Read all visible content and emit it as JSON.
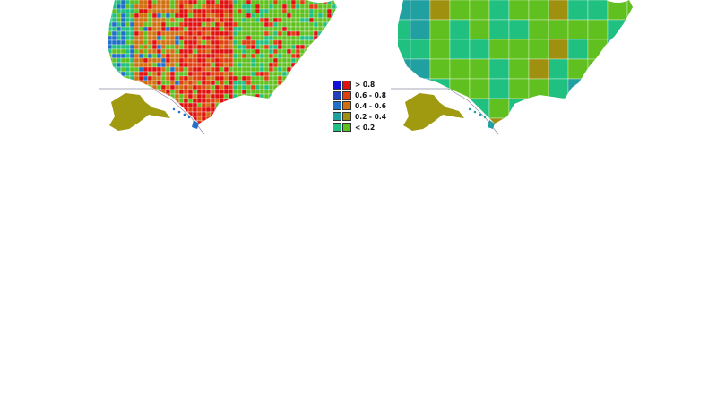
{
  "legend": {
    "items": [
      {
        "label": "> 0.8",
        "blue": "#1010d8",
        "red": "#e01010"
      },
      {
        "label": "0.6 - 0.8",
        "blue": "#2040c0",
        "red": "#e04010"
      },
      {
        "label": "0.4 - 0.6",
        "blue": "#2070c8",
        "red": "#d07010"
      },
      {
        "label": "0.2 - 0.4",
        "blue": "#20a0a0",
        "red": "#a09010"
      },
      {
        "label": "< 0.2",
        "blue": "#20c080",
        "red": "#60c020"
      }
    ]
  },
  "maps": {
    "left": {
      "palette": [
        "#e01010",
        "#e04010",
        "#d07010",
        "#a09010",
        "#60c020",
        "#20c080",
        "#20a0a0",
        "#2070c8"
      ]
    },
    "right": {
      "palette": [
        "#60c020",
        "#20c080",
        "#a09010",
        "#20a0a0"
      ]
    }
  }
}
